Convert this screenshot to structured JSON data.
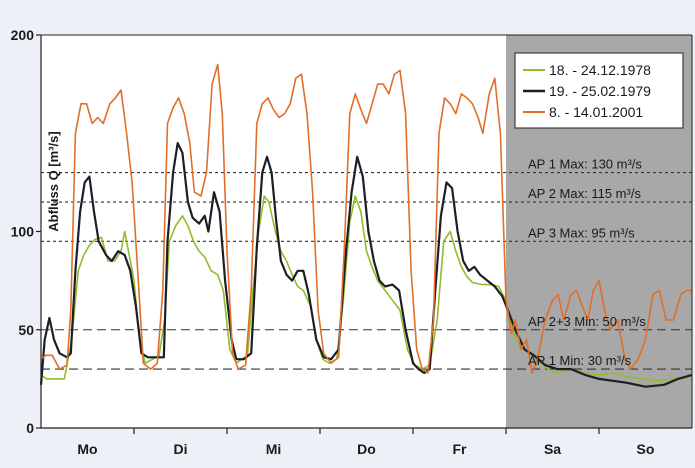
{
  "chart_data": {
    "type": "line",
    "title": "",
    "xlabel": "",
    "ylabel": "Abfluss Q [m³/s]",
    "ylim": [
      0,
      200
    ],
    "yticks": [
      0,
      50,
      100,
      200
    ],
    "xlim": [
      0,
      7
    ],
    "categories": [
      "Mo",
      "Di",
      "Mi",
      "Do",
      "Fr",
      "Sa",
      "So"
    ],
    "weekend_shading": {
      "from": 5,
      "to": 7,
      "color": "#a8a8a8"
    },
    "grid": false,
    "legend_position": "top-right",
    "thresholds": [
      {
        "label": "AP 1 Max: 130 m³/s",
        "value": 130,
        "style": "dotted"
      },
      {
        "label": "AP 2 Max: 115 m³/s",
        "value": 115,
        "style": "dotted"
      },
      {
        "label": "AP 3 Max: 95 m³/s",
        "value": 95,
        "style": "dotted"
      },
      {
        "label": "AP 2+3 Min: 50 m³/s",
        "value": 50,
        "style": "dashed"
      },
      {
        "label": "AP 1 Min: 30 m³/s",
        "value": 30,
        "style": "dashed"
      }
    ],
    "series": [
      {
        "name": "18. - 24.12.1978",
        "color": "#8fbe2a",
        "points": [
          [
            0,
            27
          ],
          [
            0.06,
            25
          ],
          [
            0.15,
            25
          ],
          [
            0.25,
            25
          ],
          [
            0.33,
            45
          ],
          [
            0.4,
            80
          ],
          [
            0.46,
            88
          ],
          [
            0.52,
            93
          ],
          [
            0.58,
            96
          ],
          [
            0.65,
            97
          ],
          [
            0.72,
            85
          ],
          [
            0.79,
            85
          ],
          [
            0.86,
            90
          ],
          [
            0.9,
            100
          ],
          [
            0.96,
            85
          ],
          [
            1,
            75
          ],
          [
            1.06,
            45
          ],
          [
            1.12,
            33
          ],
          [
            1.2,
            35
          ],
          [
            1.27,
            37
          ],
          [
            1.33,
            55
          ],
          [
            1.38,
            95
          ],
          [
            1.45,
            103
          ],
          [
            1.52,
            108
          ],
          [
            1.58,
            103
          ],
          [
            1.64,
            95
          ],
          [
            1.7,
            90
          ],
          [
            1.76,
            87
          ],
          [
            1.83,
            80
          ],
          [
            1.9,
            78
          ],
          [
            1.96,
            70
          ],
          [
            2.03,
            40
          ],
          [
            2.1,
            33
          ],
          [
            2.16,
            35
          ],
          [
            2.22,
            37
          ],
          [
            2.28,
            70
          ],
          [
            2.34,
            100
          ],
          [
            2.4,
            118
          ],
          [
            2.45,
            115
          ],
          [
            2.52,
            100
          ],
          [
            2.58,
            90
          ],
          [
            2.64,
            85
          ],
          [
            2.7,
            78
          ],
          [
            2.76,
            72
          ],
          [
            2.82,
            70
          ],
          [
            2.9,
            62
          ],
          [
            2.96,
            45
          ],
          [
            3.03,
            35
          ],
          [
            3.1,
            33
          ],
          [
            3.18,
            35
          ],
          [
            3.25,
            65
          ],
          [
            3.32,
            105
          ],
          [
            3.38,
            118
          ],
          [
            3.44,
            110
          ],
          [
            3.5,
            90
          ],
          [
            3.56,
            82
          ],
          [
            3.62,
            75
          ],
          [
            3.7,
            70
          ],
          [
            3.78,
            65
          ],
          [
            3.86,
            60
          ],
          [
            3.94,
            40
          ],
          [
            4.02,
            32
          ],
          [
            4.1,
            30
          ],
          [
            4.18,
            32
          ],
          [
            4.26,
            55
          ],
          [
            4.33,
            95
          ],
          [
            4.4,
            100
          ],
          [
            4.46,
            90
          ],
          [
            4.52,
            82
          ],
          [
            4.58,
            77
          ],
          [
            4.64,
            74
          ],
          [
            4.75,
            73
          ],
          [
            4.85,
            73
          ],
          [
            4.92,
            72
          ],
          [
            5,
            65
          ],
          [
            5.05,
            55
          ],
          [
            5.1,
            45
          ],
          [
            5.2,
            40
          ],
          [
            5.32,
            35
          ],
          [
            5.45,
            30
          ],
          [
            5.55,
            28
          ],
          [
            5.7,
            30
          ],
          [
            5.85,
            28
          ],
          [
            6,
            27
          ],
          [
            6.15,
            28
          ],
          [
            6.3,
            26
          ],
          [
            6.45,
            25
          ],
          [
            6.6,
            24
          ],
          [
            6.8,
            25
          ],
          [
            7,
            26
          ]
        ]
      },
      {
        "name": "19. - 25.02.1979",
        "color": "#1e1e28",
        "points": [
          [
            0,
            22
          ],
          [
            0.04,
            45
          ],
          [
            0.09,
            56
          ],
          [
            0.14,
            45
          ],
          [
            0.2,
            38
          ],
          [
            0.28,
            36
          ],
          [
            0.32,
            38
          ],
          [
            0.37,
            80
          ],
          [
            0.42,
            110
          ],
          [
            0.47,
            125
          ],
          [
            0.52,
            128
          ],
          [
            0.57,
            110
          ],
          [
            0.62,
            95
          ],
          [
            0.7,
            88
          ],
          [
            0.76,
            85
          ],
          [
            0.83,
            90
          ],
          [
            0.9,
            88
          ],
          [
            0.96,
            80
          ],
          [
            1.02,
            62
          ],
          [
            1.08,
            38
          ],
          [
            1.15,
            36
          ],
          [
            1.25,
            36
          ],
          [
            1.32,
            36
          ],
          [
            1.36,
            95
          ],
          [
            1.42,
            130
          ],
          [
            1.47,
            145
          ],
          [
            1.52,
            140
          ],
          [
            1.58,
            115
          ],
          [
            1.63,
            107
          ],
          [
            1.7,
            104
          ],
          [
            1.76,
            108
          ],
          [
            1.8,
            100
          ],
          [
            1.86,
            120
          ],
          [
            1.92,
            110
          ],
          [
            1.98,
            75
          ],
          [
            2.05,
            45
          ],
          [
            2.1,
            35
          ],
          [
            2.18,
            35
          ],
          [
            2.26,
            38
          ],
          [
            2.32,
            92
          ],
          [
            2.38,
            130
          ],
          [
            2.43,
            138
          ],
          [
            2.48,
            130
          ],
          [
            2.53,
            105
          ],
          [
            2.58,
            85
          ],
          [
            2.64,
            78
          ],
          [
            2.7,
            75
          ],
          [
            2.76,
            80
          ],
          [
            2.82,
            80
          ],
          [
            2.88,
            68
          ],
          [
            2.96,
            45
          ],
          [
            3.04,
            36
          ],
          [
            3.12,
            35
          ],
          [
            3.2,
            40
          ],
          [
            3.28,
            90
          ],
          [
            3.34,
            120
          ],
          [
            3.4,
            138
          ],
          [
            3.46,
            128
          ],
          [
            3.52,
            100
          ],
          [
            3.58,
            85
          ],
          [
            3.64,
            75
          ],
          [
            3.7,
            72
          ],
          [
            3.78,
            73
          ],
          [
            3.85,
            70
          ],
          [
            3.92,
            50
          ],
          [
            4,
            33
          ],
          [
            4.06,
            30
          ],
          [
            4.12,
            28
          ],
          [
            4.18,
            30
          ],
          [
            4.24,
            70
          ],
          [
            4.3,
            108
          ],
          [
            4.36,
            125
          ],
          [
            4.42,
            122
          ],
          [
            4.48,
            100
          ],
          [
            4.54,
            85
          ],
          [
            4.6,
            80
          ],
          [
            4.66,
            82
          ],
          [
            4.72,
            78
          ],
          [
            4.8,
            75
          ],
          [
            4.88,
            72
          ],
          [
            4.96,
            67
          ],
          [
            5.02,
            60
          ],
          [
            5.1,
            50
          ],
          [
            5.2,
            40
          ],
          [
            5.3,
            37
          ],
          [
            5.42,
            32
          ],
          [
            5.55,
            30
          ],
          [
            5.7,
            30
          ],
          [
            5.85,
            27
          ],
          [
            6,
            25
          ],
          [
            6.15,
            24
          ],
          [
            6.3,
            23
          ],
          [
            6.5,
            21
          ],
          [
            6.7,
            22
          ],
          [
            6.85,
            25
          ],
          [
            7,
            27
          ]
        ]
      },
      {
        "name": "8. - 14.01.2001",
        "color": "#e06f28",
        "points": [
          [
            0,
            35
          ],
          [
            0.05,
            37
          ],
          [
            0.12,
            37
          ],
          [
            0.2,
            30
          ],
          [
            0.28,
            32
          ],
          [
            0.32,
            60
          ],
          [
            0.37,
            150
          ],
          [
            0.43,
            165
          ],
          [
            0.49,
            165
          ],
          [
            0.55,
            155
          ],
          [
            0.61,
            158
          ],
          [
            0.67,
            155
          ],
          [
            0.74,
            165
          ],
          [
            0.8,
            168
          ],
          [
            0.86,
            172
          ],
          [
            0.92,
            150
          ],
          [
            0.98,
            125
          ],
          [
            1.04,
            80
          ],
          [
            1.1,
            33
          ],
          [
            1.18,
            30
          ],
          [
            1.25,
            33
          ],
          [
            1.31,
            70
          ],
          [
            1.36,
            155
          ],
          [
            1.42,
            163
          ],
          [
            1.48,
            168
          ],
          [
            1.54,
            160
          ],
          [
            1.6,
            145
          ],
          [
            1.65,
            120
          ],
          [
            1.72,
            118
          ],
          [
            1.78,
            130
          ],
          [
            1.84,
            175
          ],
          [
            1.9,
            185
          ],
          [
            1.95,
            160
          ],
          [
            2,
            90
          ],
          [
            2.06,
            38
          ],
          [
            2.12,
            30
          ],
          [
            2.2,
            32
          ],
          [
            2.26,
            70
          ],
          [
            2.32,
            155
          ],
          [
            2.38,
            165
          ],
          [
            2.44,
            168
          ],
          [
            2.5,
            162
          ],
          [
            2.56,
            158
          ],
          [
            2.62,
            160
          ],
          [
            2.68,
            165
          ],
          [
            2.74,
            178
          ],
          [
            2.8,
            180
          ],
          [
            2.86,
            160
          ],
          [
            2.92,
            120
          ],
          [
            2.98,
            60
          ],
          [
            3.04,
            38
          ],
          [
            3.12,
            33
          ],
          [
            3.2,
            36
          ],
          [
            3.26,
            90
          ],
          [
            3.32,
            160
          ],
          [
            3.38,
            170
          ],
          [
            3.44,
            162
          ],
          [
            3.5,
            155
          ],
          [
            3.56,
            165
          ],
          [
            3.62,
            175
          ],
          [
            3.68,
            175
          ],
          [
            3.74,
            170
          ],
          [
            3.8,
            180
          ],
          [
            3.86,
            182
          ],
          [
            3.92,
            160
          ],
          [
            3.98,
            80
          ],
          [
            4.04,
            40
          ],
          [
            4.1,
            30
          ],
          [
            4.16,
            28
          ],
          [
            4.22,
            55
          ],
          [
            4.28,
            150
          ],
          [
            4.34,
            168
          ],
          [
            4.4,
            165
          ],
          [
            4.46,
            160
          ],
          [
            4.52,
            170
          ],
          [
            4.58,
            168
          ],
          [
            4.64,
            165
          ],
          [
            4.7,
            158
          ],
          [
            4.75,
            150
          ],
          [
            4.82,
            170
          ],
          [
            4.88,
            178
          ],
          [
            4.94,
            150
          ],
          [
            5,
            65
          ],
          [
            5.06,
            48
          ],
          [
            5.1,
            55
          ],
          [
            5.16,
            40
          ],
          [
            5.22,
            45
          ],
          [
            5.28,
            28
          ],
          [
            5.34,
            35
          ],
          [
            5.42,
            55
          ],
          [
            5.5,
            65
          ],
          [
            5.56,
            68
          ],
          [
            5.62,
            55
          ],
          [
            5.7,
            68
          ],
          [
            5.76,
            70
          ],
          [
            5.82,
            62
          ],
          [
            5.88,
            55
          ],
          [
            5.94,
            70
          ],
          [
            6,
            75
          ],
          [
            6.06,
            60
          ],
          [
            6.12,
            50
          ],
          [
            6.2,
            55
          ],
          [
            6.28,
            35
          ],
          [
            6.34,
            30
          ],
          [
            6.42,
            35
          ],
          [
            6.5,
            45
          ],
          [
            6.58,
            68
          ],
          [
            6.65,
            70
          ],
          [
            6.72,
            55
          ],
          [
            6.8,
            55
          ],
          [
            6.88,
            68
          ],
          [
            6.94,
            70
          ],
          [
            7,
            70
          ]
        ]
      }
    ]
  }
}
